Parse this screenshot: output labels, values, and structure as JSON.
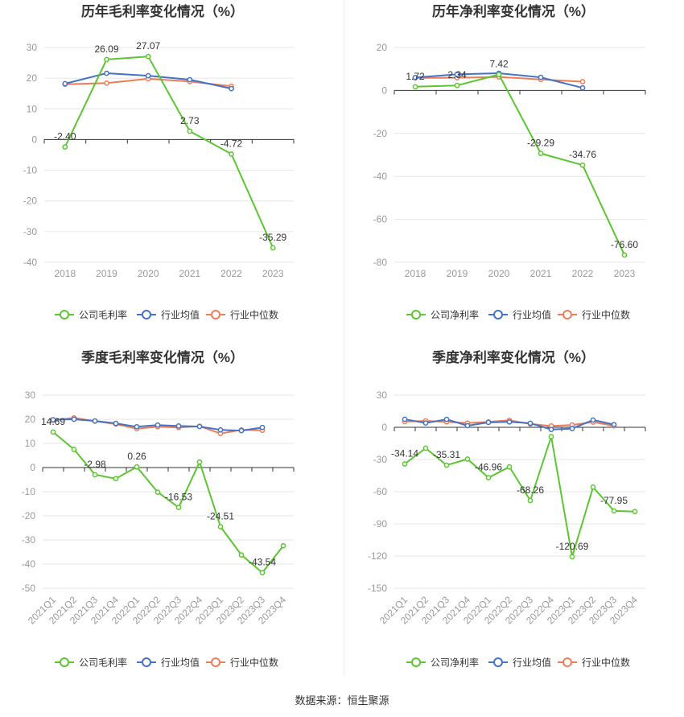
{
  "colors": {
    "company": "#5cc531",
    "avg": "#4472c4",
    "median": "#ed7d56",
    "axis": "#333333",
    "grid": "#e6e6e6",
    "label": "#999999"
  },
  "source_text": "数据来源：恒生聚源",
  "chart_data": [
    {
      "type": "line",
      "title": "历年毛利率变化情况（%）",
      "categories": [
        "2018",
        "2019",
        "2020",
        "2021",
        "2022",
        "2023"
      ],
      "ylim": [
        -40,
        30
      ],
      "yticks": [
        30,
        20,
        10,
        0,
        -10,
        -20,
        -30,
        -40
      ],
      "x_rotated": false,
      "series": [
        {
          "name": "公司毛利率",
          "key": "company",
          "values": [
            -2.4,
            26.09,
            27.07,
            2.73,
            -4.72,
            -35.29
          ],
          "labels": [
            "-2.40",
            "26.09",
            "27.07",
            "2.73",
            "-4.72",
            "-35.29"
          ]
        },
        {
          "name": "行业均值",
          "key": "avg",
          "values": [
            18.2,
            21.6,
            20.8,
            19.5,
            16.6,
            null
          ]
        },
        {
          "name": "行业中位数",
          "key": "median",
          "values": [
            18.0,
            18.4,
            19.8,
            18.9,
            17.4,
            null
          ]
        }
      ]
    },
    {
      "type": "line",
      "title": "历年净利率变化情况（%）",
      "categories": [
        "2018",
        "2019",
        "2020",
        "2021",
        "2022",
        "2023"
      ],
      "ylim": [
        -80,
        20
      ],
      "yticks": [
        20,
        0,
        -20,
        -40,
        -60,
        -80
      ],
      "x_rotated": false,
      "series": [
        {
          "name": "公司净利率",
          "key": "company",
          "values": [
            1.72,
            2.34,
            7.42,
            -29.29,
            -34.76,
            -76.6
          ],
          "labels": [
            "1.72",
            "2.34",
            "7.42",
            "-29.29",
            "-34.76",
            "-76.60"
          ]
        },
        {
          "name": "行业均值",
          "key": "avg",
          "values": [
            6.0,
            7.5,
            8.0,
            6.1,
            1.2,
            null
          ]
        },
        {
          "name": "行业中位数",
          "key": "median",
          "values": [
            5.8,
            5.9,
            6.3,
            5.1,
            4.1,
            null
          ]
        }
      ]
    },
    {
      "type": "line",
      "title": "季度毛利率变化情况（%）",
      "categories": [
        "2021Q1",
        "2021Q2",
        "2021Q3",
        "2021Q4",
        "2022Q1",
        "2022Q2",
        "2022Q3",
        "2022Q4",
        "2023Q1",
        "2023Q2",
        "2023Q3",
        "2023Q4"
      ],
      "ylim": [
        -50,
        30
      ],
      "yticks": [
        30,
        20,
        10,
        0,
        -10,
        -20,
        -30,
        -40,
        -50
      ],
      "x_rotated": true,
      "series": [
        {
          "name": "公司毛利率",
          "key": "company",
          "values": [
            14.69,
            7.5,
            -2.98,
            -4.6,
            0.26,
            -10.2,
            -16.53,
            2.3,
            -24.51,
            -36.2,
            -43.54,
            -32.4
          ],
          "labels": [
            "14.69",
            "",
            "-2.98",
            "",
            "0.26",
            "",
            "-16.53",
            "",
            "-24.51",
            "",
            "-43.54",
            ""
          ]
        },
        {
          "name": "行业均值",
          "key": "avg",
          "values": [
            19.8,
            20.0,
            19.3,
            18.3,
            16.9,
            17.6,
            17.2,
            17.0,
            15.6,
            15.3,
            16.6,
            null
          ]
        },
        {
          "name": "行业中位数",
          "key": "median",
          "values": [
            19.6,
            20.6,
            19.2,
            18.0,
            16.1,
            16.9,
            16.6,
            17.1,
            14.1,
            15.6,
            15.4,
            null
          ]
        }
      ]
    },
    {
      "type": "line",
      "title": "季度净利率变化情况（%）",
      "categories": [
        "2021Q1",
        "2021Q2",
        "2021Q3",
        "2021Q4",
        "2022Q1",
        "2022Q2",
        "2022Q3",
        "2022Q4",
        "2023Q1",
        "2023Q2",
        "2023Q3",
        "2023Q4"
      ],
      "ylim": [
        -150,
        30
      ],
      "yticks": [
        30,
        0,
        -30,
        -60,
        -90,
        -120,
        -150
      ],
      "x_rotated": true,
      "series": [
        {
          "name": "公司净利率",
          "key": "company",
          "values": [
            -34.14,
            -19.5,
            -35.31,
            -29.6,
            -46.96,
            -36.9,
            -68.26,
            -8.6,
            -120.69,
            -55.8,
            -77.95,
            -78.5
          ],
          "labels": [
            "-34.14",
            "",
            "-35.31",
            "",
            "-46.96",
            "",
            "-68.26",
            "",
            "-120.69",
            "",
            "-77.95",
            ""
          ]
        },
        {
          "name": "行业均值",
          "key": "avg",
          "values": [
            7.5,
            4.0,
            7.4,
            1.5,
            4.6,
            5.0,
            3.8,
            -2.0,
            -1.2,
            6.8,
            2.5,
            null
          ]
        },
        {
          "name": "行业中位数",
          "key": "median",
          "values": [
            5.3,
            6.0,
            5.1,
            4.0,
            5.0,
            6.5,
            3.1,
            1.2,
            2.2,
            4.9,
            1.4,
            null
          ]
        }
      ]
    }
  ]
}
